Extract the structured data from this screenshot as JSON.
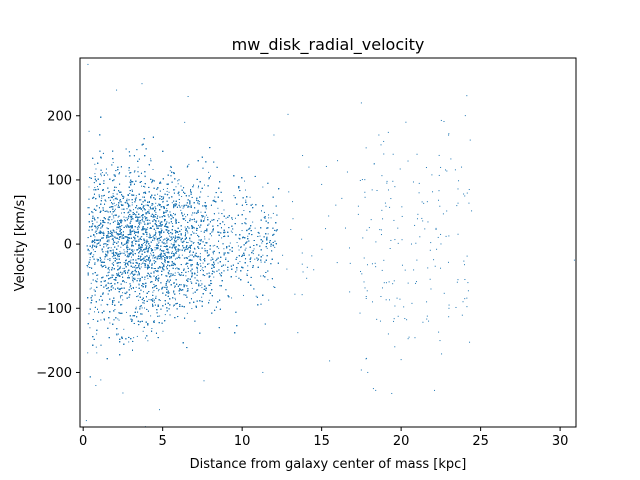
{
  "chart_data": {
    "type": "scatter",
    "title": "mw_disk_radial_velocity",
    "xlabel": "Distance from galaxy center of mass [kpc]",
    "ylabel": "Velocity [km/s]",
    "xlim": [
      -0.2,
      31.0
    ],
    "ylim": [
      -285,
      290
    ],
    "xticks": [
      0,
      5,
      10,
      15,
      20,
      25,
      30
    ],
    "yticks": [
      -200,
      -100,
      0,
      100,
      200
    ],
    "xtick_labels": [
      "0",
      "5",
      "10",
      "15",
      "20",
      "25",
      "30"
    ],
    "ytick_labels": [
      "−200",
      "−100",
      "0",
      "100",
      "200"
    ],
    "grid": false,
    "legend": "none",
    "marker_color": "#1f77b4",
    "series": [
      {
        "points": [
          [
            0.3,
            280
          ],
          [
            0.2,
            -275
          ],
          [
            3.7,
            250
          ],
          [
            4.8,
            -258
          ],
          [
            2.1,
            240
          ],
          [
            2.5,
            -232
          ],
          [
            6.6,
            230
          ],
          [
            7.6,
            -213
          ],
          [
            12.0,
            170
          ],
          [
            11.3,
            -200
          ],
          [
            13.8,
            138
          ],
          [
            13.5,
            -138
          ],
          [
            14.2,
            120
          ],
          [
            14.5,
            -40
          ],
          [
            15.5,
            -182
          ],
          [
            15.0,
            93
          ],
          [
            15.3,
            121
          ],
          [
            16.0,
            130
          ],
          [
            16.5,
            25
          ],
          [
            16.8,
            -30
          ],
          [
            17.5,
            220
          ],
          [
            17.8,
            150
          ],
          [
            18.3,
            125
          ],
          [
            18.6,
            170
          ],
          [
            18.9,
            160
          ],
          [
            19.1,
            95
          ],
          [
            19.5,
            140
          ],
          [
            18.2,
            -90
          ],
          [
            18.7,
            -120
          ],
          [
            19.2,
            -140
          ],
          [
            19.6,
            -160
          ],
          [
            20.0,
            -180
          ],
          [
            20.5,
            -145
          ],
          [
            17.9,
            -200
          ],
          [
            18.4,
            -228
          ],
          [
            21.0,
            140
          ],
          [
            21.3,
            40
          ],
          [
            21.6,
            -90
          ],
          [
            22.1,
            -228
          ],
          [
            22.4,
            107
          ],
          [
            23.0,
            172
          ],
          [
            23.5,
            60
          ],
          [
            23.8,
            120
          ],
          [
            24.0,
            75
          ],
          [
            24.2,
            -60
          ],
          [
            24.0,
            -85
          ],
          [
            30.9,
            -25
          ]
        ]
      }
    ]
  }
}
